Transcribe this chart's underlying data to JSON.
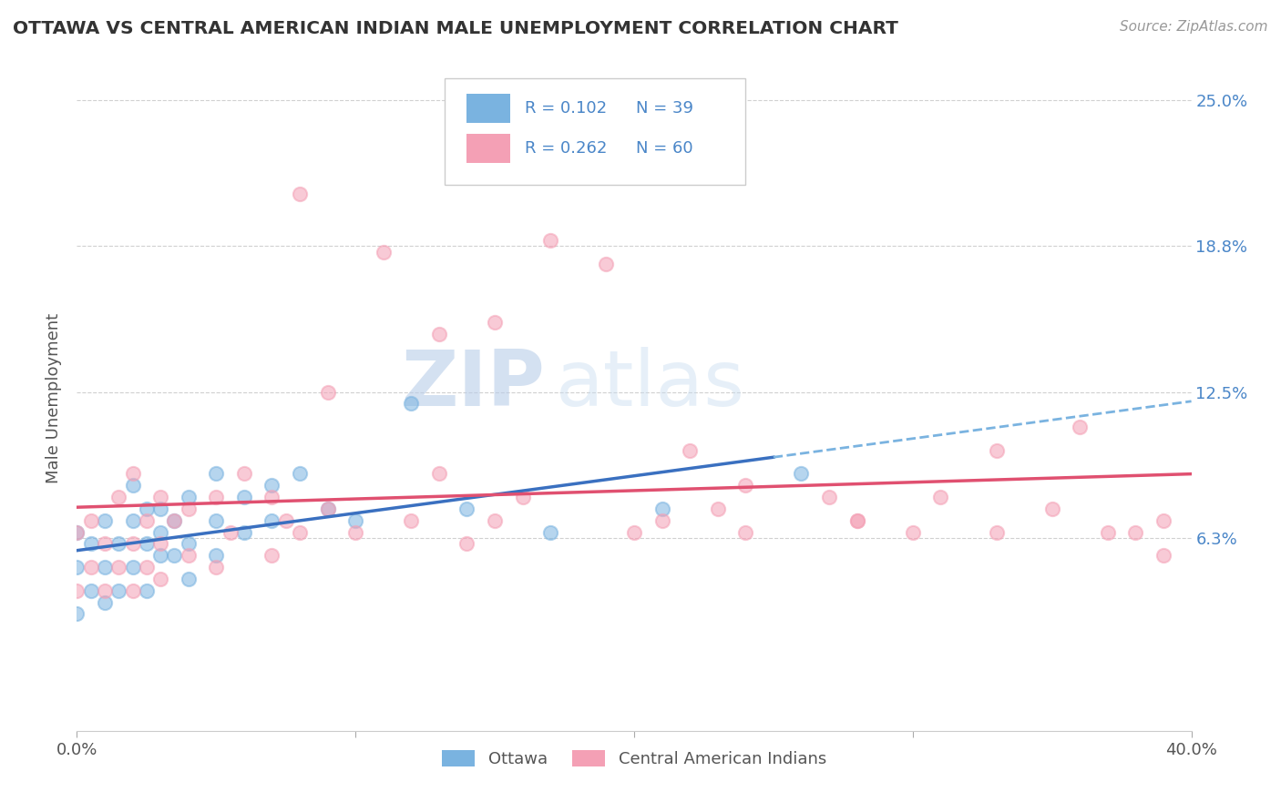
{
  "title": "OTTAWA VS CENTRAL AMERICAN INDIAN MALE UNEMPLOYMENT CORRELATION CHART",
  "source": "Source: ZipAtlas.com",
  "ylabel": "Male Unemployment",
  "xlim": [
    0.0,
    0.4
  ],
  "ylim": [
    -0.02,
    0.265
  ],
  "xticks": [
    0.0,
    0.4
  ],
  "xtick_labels": [
    "0.0%",
    "40.0%"
  ],
  "ytick_labels_right": [
    "25.0%",
    "18.8%",
    "12.5%",
    "6.3%"
  ],
  "ytick_vals_right": [
    0.25,
    0.1875,
    0.125,
    0.0625
  ],
  "grid_color": "#d0d0d0",
  "background_color": "#ffffff",
  "watermark_zip": "ZIP",
  "watermark_atlas": "atlas",
  "legend_r1": "0.102",
  "legend_n1": "39",
  "legend_r2": "0.262",
  "legend_n2": "60",
  "ottawa_color": "#7ab3e0",
  "central_color": "#f4a0b5",
  "trend_ottawa_solid_color": "#3a70c0",
  "trend_ottawa_dash_color": "#7ab3e0",
  "trend_central_color": "#e05070",
  "ottawa_scatter_x": [
    0.0,
    0.0,
    0.0,
    0.005,
    0.005,
    0.01,
    0.01,
    0.01,
    0.015,
    0.015,
    0.02,
    0.02,
    0.02,
    0.025,
    0.025,
    0.025,
    0.03,
    0.03,
    0.03,
    0.035,
    0.035,
    0.04,
    0.04,
    0.04,
    0.05,
    0.05,
    0.05,
    0.06,
    0.06,
    0.07,
    0.07,
    0.08,
    0.09,
    0.1,
    0.12,
    0.14,
    0.17,
    0.21,
    0.26
  ],
  "ottawa_scatter_y": [
    0.03,
    0.05,
    0.065,
    0.04,
    0.06,
    0.035,
    0.05,
    0.07,
    0.04,
    0.06,
    0.05,
    0.07,
    0.085,
    0.04,
    0.06,
    0.075,
    0.055,
    0.065,
    0.075,
    0.055,
    0.07,
    0.045,
    0.06,
    0.08,
    0.055,
    0.07,
    0.09,
    0.065,
    0.08,
    0.07,
    0.085,
    0.09,
    0.075,
    0.07,
    0.12,
    0.075,
    0.065,
    0.075,
    0.09
  ],
  "central_scatter_x": [
    0.0,
    0.0,
    0.005,
    0.005,
    0.01,
    0.01,
    0.015,
    0.015,
    0.02,
    0.02,
    0.02,
    0.025,
    0.025,
    0.03,
    0.03,
    0.03,
    0.035,
    0.04,
    0.04,
    0.05,
    0.05,
    0.055,
    0.06,
    0.07,
    0.07,
    0.075,
    0.08,
    0.09,
    0.1,
    0.12,
    0.13,
    0.14,
    0.15,
    0.16,
    0.2,
    0.21,
    0.23,
    0.24,
    0.27,
    0.28,
    0.3,
    0.31,
    0.33,
    0.35,
    0.37,
    0.39,
    0.09,
    0.13,
    0.22,
    0.15,
    0.17,
    0.19,
    0.08,
    0.11,
    0.33,
    0.36,
    0.24,
    0.28,
    0.38,
    0.39
  ],
  "central_scatter_y": [
    0.04,
    0.065,
    0.05,
    0.07,
    0.04,
    0.06,
    0.05,
    0.08,
    0.04,
    0.06,
    0.09,
    0.05,
    0.07,
    0.045,
    0.06,
    0.08,
    0.07,
    0.055,
    0.075,
    0.05,
    0.08,
    0.065,
    0.09,
    0.055,
    0.08,
    0.07,
    0.065,
    0.075,
    0.065,
    0.07,
    0.09,
    0.06,
    0.07,
    0.08,
    0.065,
    0.07,
    0.075,
    0.065,
    0.08,
    0.07,
    0.065,
    0.08,
    0.065,
    0.075,
    0.065,
    0.07,
    0.125,
    0.15,
    0.1,
    0.155,
    0.19,
    0.18,
    0.21,
    0.185,
    0.1,
    0.11,
    0.085,
    0.07,
    0.065,
    0.055
  ],
  "trend_solid_end": 0.25
}
